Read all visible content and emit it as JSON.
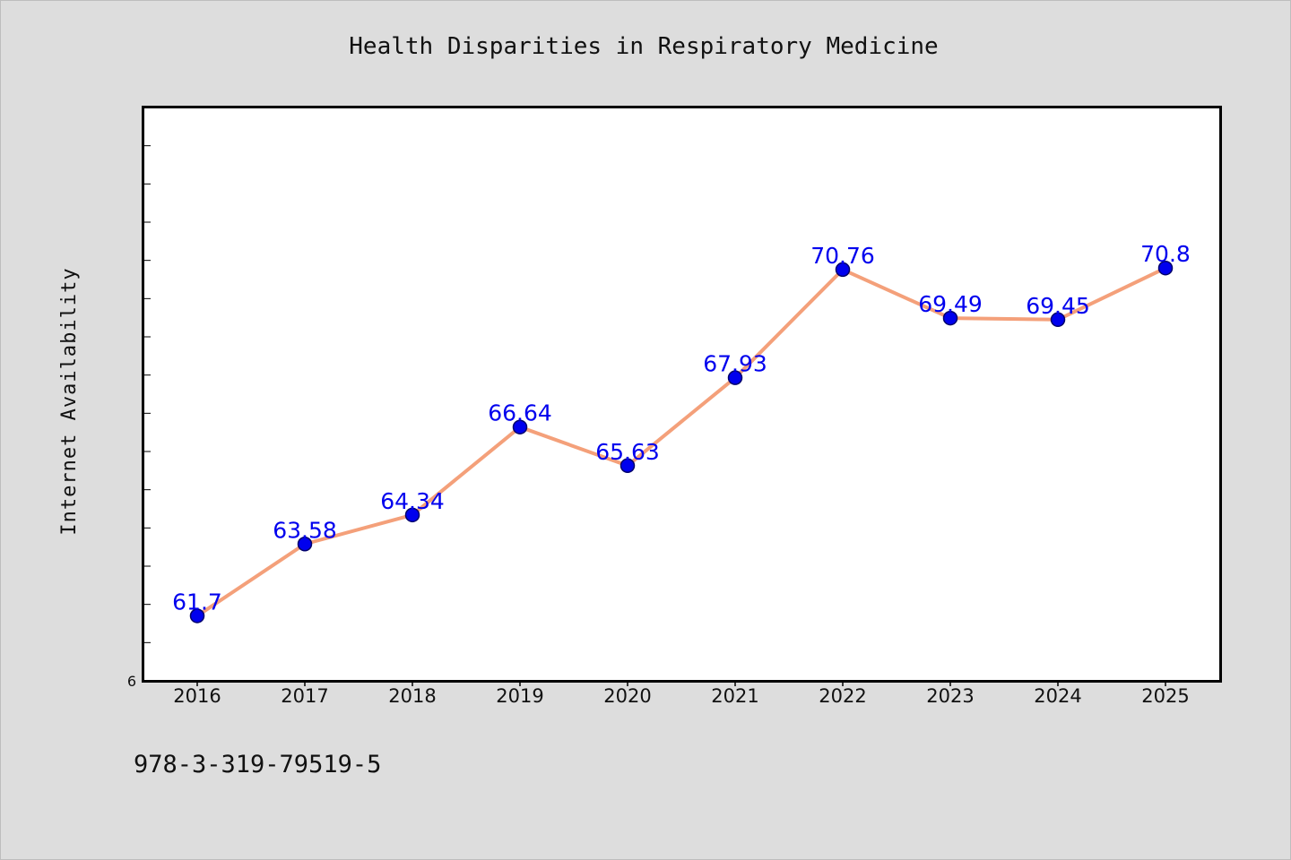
{
  "chart_data": {
    "type": "line",
    "title": "Health Disparities in Respiratory Medicine",
    "xlabel": "",
    "ylabel": "Internet Availability",
    "categories": [
      "2016",
      "2017",
      "2018",
      "2019",
      "2020",
      "2021",
      "2022",
      "2023",
      "2024",
      "2025"
    ],
    "series": [
      {
        "values": [
          61.7,
          63.58,
          64.34,
          66.64,
          65.63,
          67.93,
          70.76,
          69.49,
          69.45,
          70.8
        ],
        "labels": [
          "61.7",
          "63.58",
          "64.34",
          "66.64",
          "65.63",
          "67.93",
          "70.76",
          "69.49",
          "69.45",
          "70.8"
        ]
      }
    ],
    "y_tick_labels": [
      "6"
    ],
    "ylim": [
      60,
      75
    ],
    "grid": false,
    "legend": "none",
    "colors": {
      "line": "#f4a07a",
      "marker": "#0000ee",
      "marker_edge": "#00006b",
      "data_label": "#0000ee",
      "plot_background": "#ffffff",
      "figure_background": "#dddddd"
    }
  },
  "footer": {
    "isbn": "978-3-319-79519-5"
  }
}
